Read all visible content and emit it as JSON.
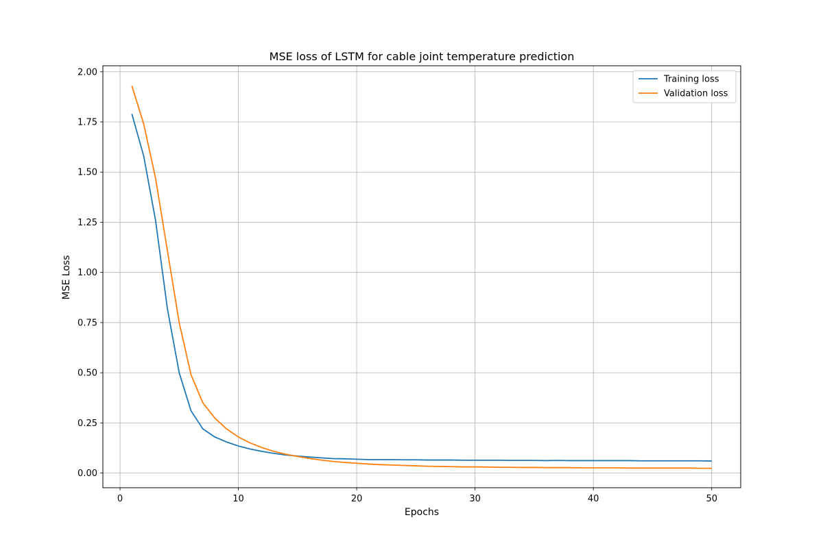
{
  "chart_data": {
    "type": "line",
    "title": "MSE loss of LSTM for cable joint temperature prediction",
    "xlabel": "Epochs",
    "ylabel": "MSE Loss",
    "xlim": [
      -1.45,
      52.45
    ],
    "ylim": [
      -0.073,
      2.03
    ],
    "xticks": [
      0,
      10,
      20,
      30,
      40,
      50
    ],
    "xtick_labels": [
      "0",
      "10",
      "20",
      "30",
      "40",
      "50"
    ],
    "yticks": [
      0,
      0.25,
      0.5,
      0.75,
      1.0,
      1.25,
      1.5,
      1.75,
      2.0
    ],
    "ytick_labels": [
      "0.00",
      "0.25",
      "0.50",
      "0.75",
      "1.00",
      "1.25",
      "1.50",
      "1.75",
      "2.00"
    ],
    "grid": true,
    "legend_position": "top-right",
    "x": [
      1,
      2,
      3,
      4,
      5,
      6,
      7,
      8,
      9,
      10,
      11,
      12,
      13,
      14,
      15,
      16,
      17,
      18,
      19,
      20,
      21,
      22,
      23,
      24,
      25,
      26,
      27,
      28,
      29,
      30,
      31,
      32,
      33,
      34,
      35,
      36,
      37,
      38,
      39,
      40,
      41,
      42,
      43,
      44,
      45,
      46,
      47,
      48,
      49,
      50
    ],
    "series": [
      {
        "name": "Training loss",
        "color": "#1f77b4",
        "values": [
          1.79,
          1.58,
          1.26,
          0.82,
          0.5,
          0.31,
          0.22,
          0.18,
          0.155,
          0.135,
          0.12,
          0.108,
          0.098,
          0.09,
          0.085,
          0.08,
          0.076,
          0.072,
          0.071,
          0.069,
          0.067,
          0.067,
          0.067,
          0.066,
          0.066,
          0.065,
          0.065,
          0.065,
          0.064,
          0.064,
          0.064,
          0.064,
          0.063,
          0.063,
          0.063,
          0.062,
          0.063,
          0.062,
          0.062,
          0.062,
          0.062,
          0.062,
          0.062,
          0.061,
          0.061,
          0.061,
          0.061,
          0.061,
          0.061,
          0.06
        ]
      },
      {
        "name": "Validation loss",
        "color": "#ff7f0e",
        "values": [
          1.93,
          1.74,
          1.47,
          1.11,
          0.75,
          0.49,
          0.35,
          0.275,
          0.22,
          0.18,
          0.15,
          0.127,
          0.108,
          0.094,
          0.083,
          0.073,
          0.065,
          0.058,
          0.053,
          0.049,
          0.045,
          0.042,
          0.04,
          0.038,
          0.036,
          0.034,
          0.033,
          0.032,
          0.031,
          0.031,
          0.03,
          0.029,
          0.029,
          0.028,
          0.028,
          0.027,
          0.027,
          0.027,
          0.026,
          0.026,
          0.026,
          0.026,
          0.025,
          0.025,
          0.025,
          0.025,
          0.025,
          0.025,
          0.024,
          0.024
        ]
      }
    ]
  }
}
